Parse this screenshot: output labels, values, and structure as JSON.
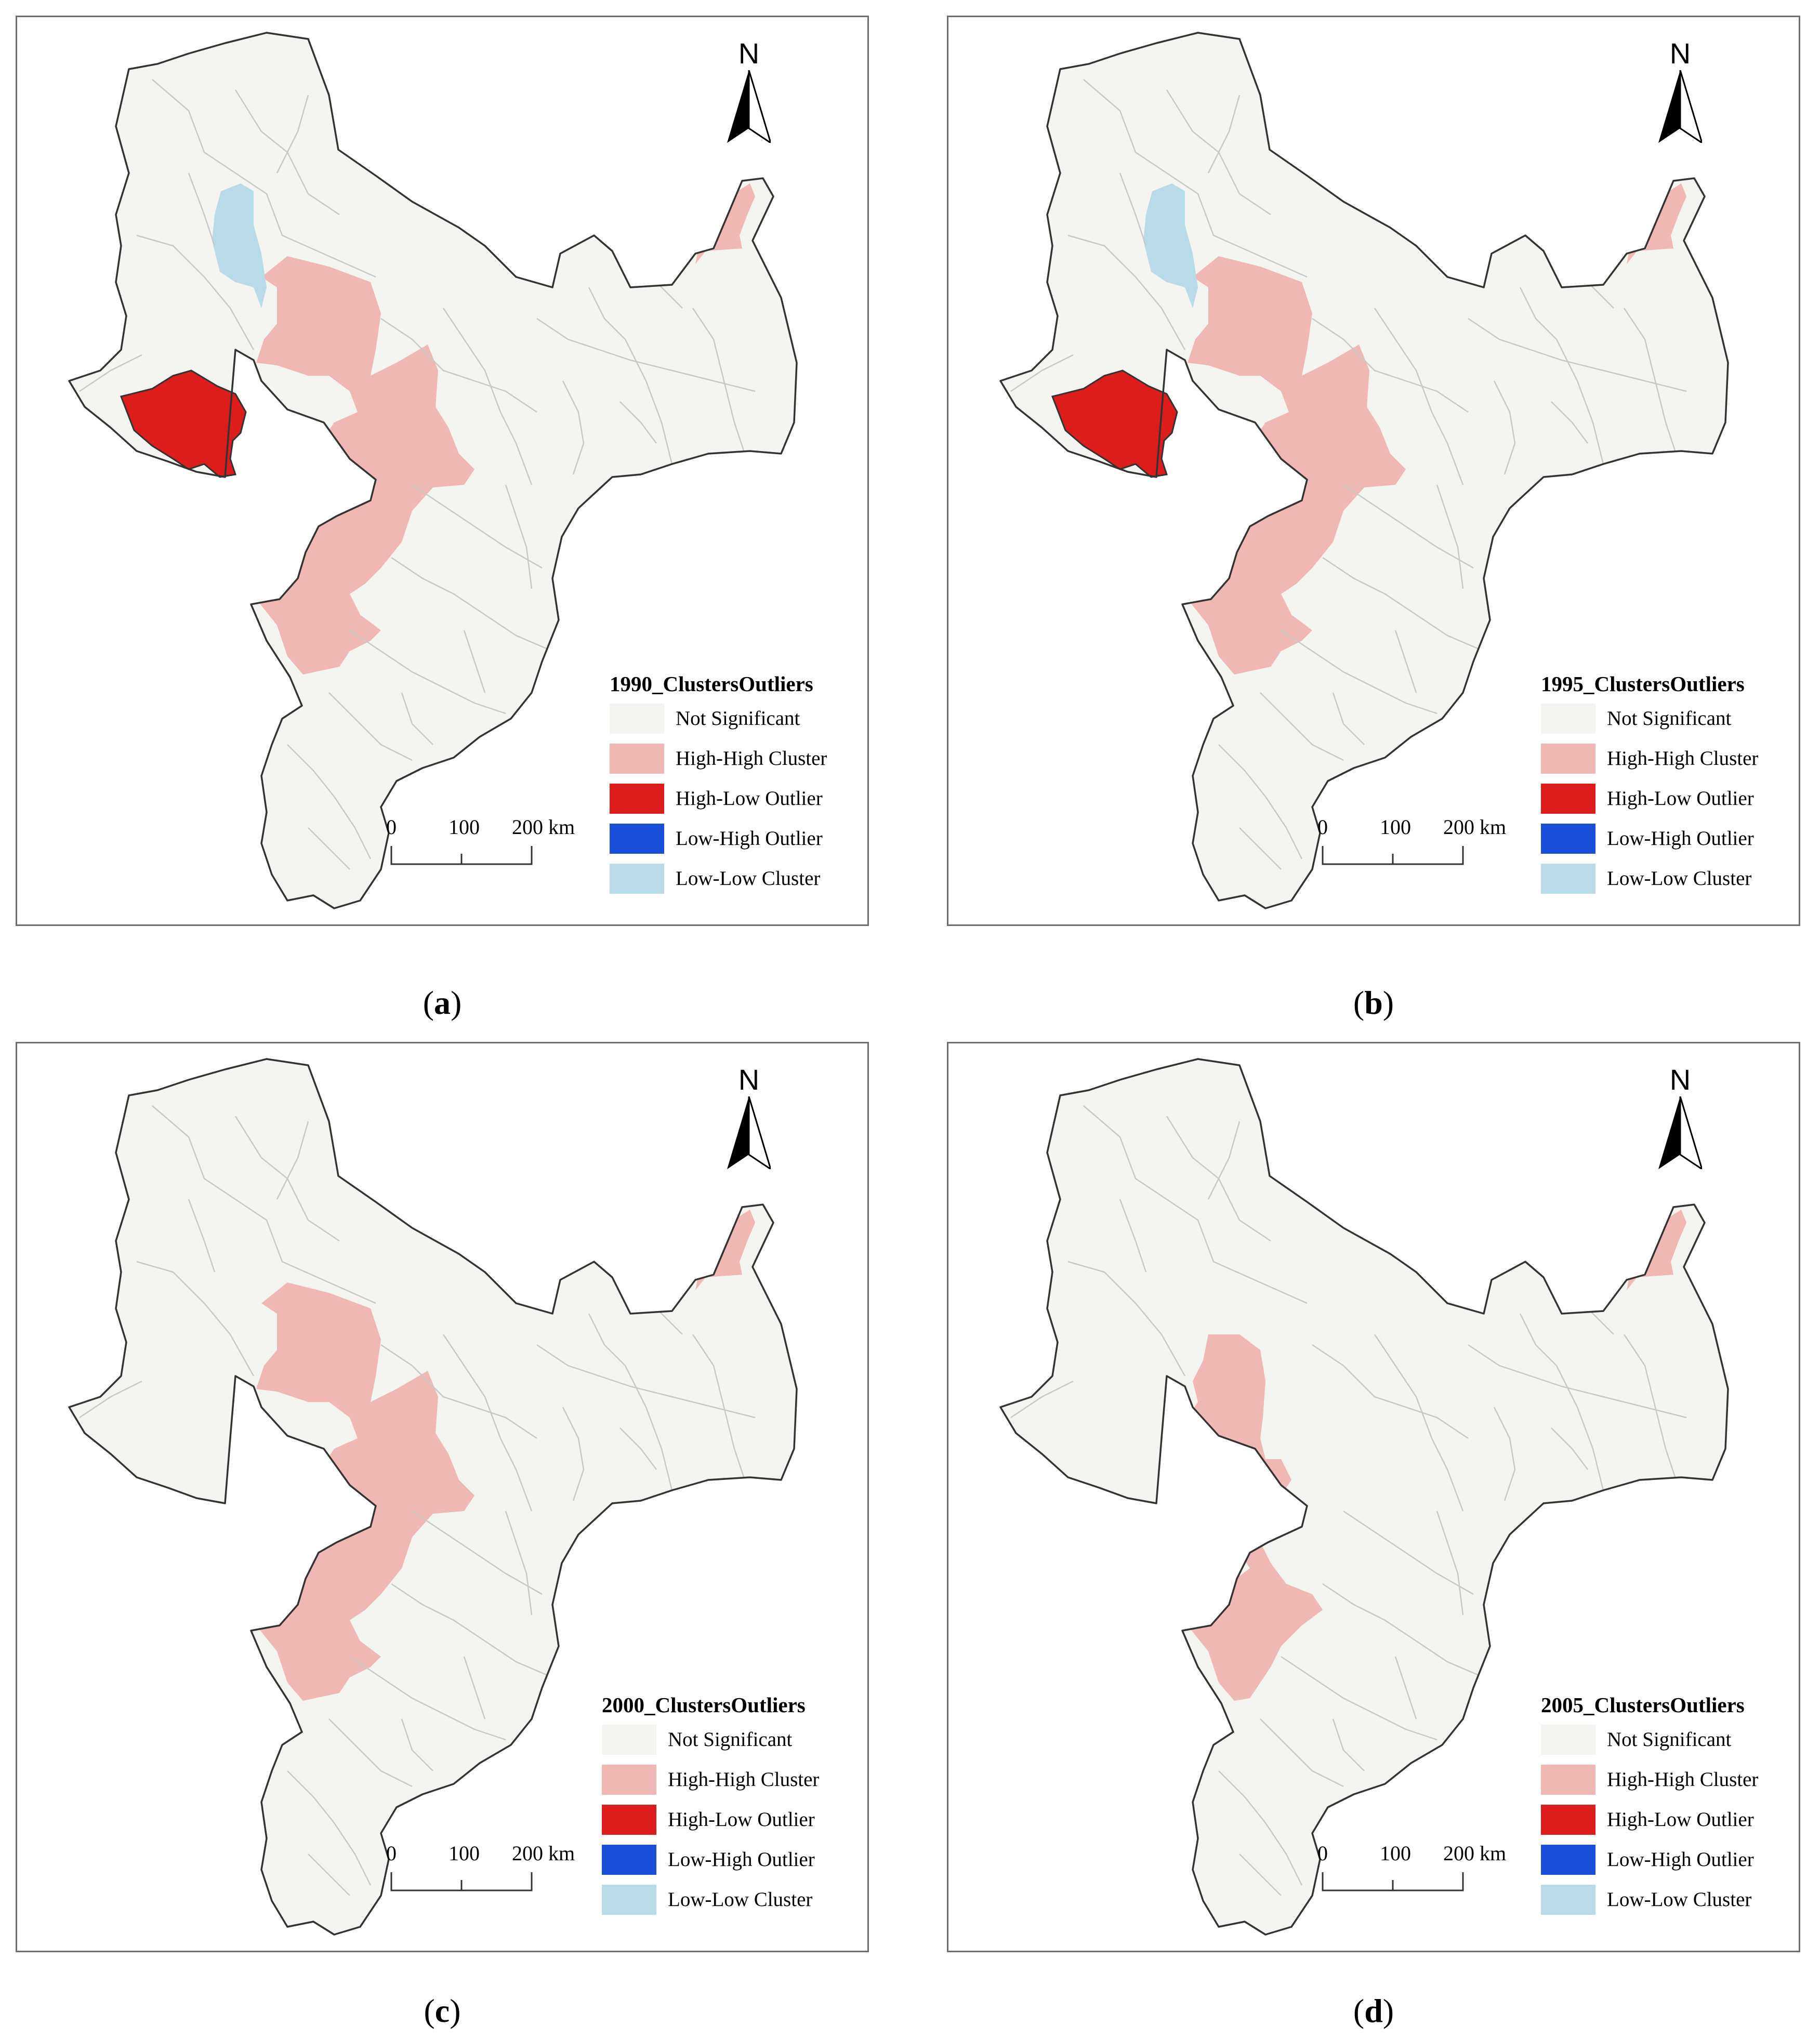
{
  "legend_labels": {
    "not_significant": "Not Significant",
    "high_high": "High-High Cluster",
    "high_low": "High-Low Outlier",
    "low_high": "Low-High Outlier",
    "low_low": "Low-Low Cluster"
  },
  "colors": {
    "not_significant": "#f4f4f0",
    "high_high": "#f0b8b4",
    "high_low": "#dd1c1c",
    "low_high": "#1a4fd9",
    "low_low": "#b9dbe8",
    "boundary": "#333333",
    "internal_lines": "#c8c8c8"
  },
  "north_arrow": {
    "label": "N",
    "icon": "north-arrow-icon"
  },
  "scale_bar": {
    "ticks": [
      "0",
      "100",
      "200"
    ],
    "unit": "km"
  },
  "panels": [
    {
      "id": "a",
      "caption": "a",
      "legend_title": "1990_ClustersOutliers",
      "classes": {
        "low_low_north": true,
        "high_low_west": true,
        "high_high_central": "full",
        "high_high_northeast": true
      }
    },
    {
      "id": "b",
      "caption": "b",
      "legend_title": "1995_ClustersOutliers",
      "classes": {
        "low_low_north": true,
        "high_low_west": true,
        "high_high_central": "full",
        "high_high_northeast": true
      }
    },
    {
      "id": "c",
      "caption": "c",
      "legend_title": "2000_ClustersOutliers",
      "classes": {
        "low_low_north": false,
        "high_low_west": false,
        "high_high_central": "full",
        "high_high_northeast": true
      }
    },
    {
      "id": "d",
      "caption": "d",
      "legend_title": "2005_ClustersOutliers",
      "classes": {
        "low_low_north": false,
        "high_low_west": false,
        "high_high_central": "reduced",
        "high_high_northeast": true
      }
    }
  ]
}
